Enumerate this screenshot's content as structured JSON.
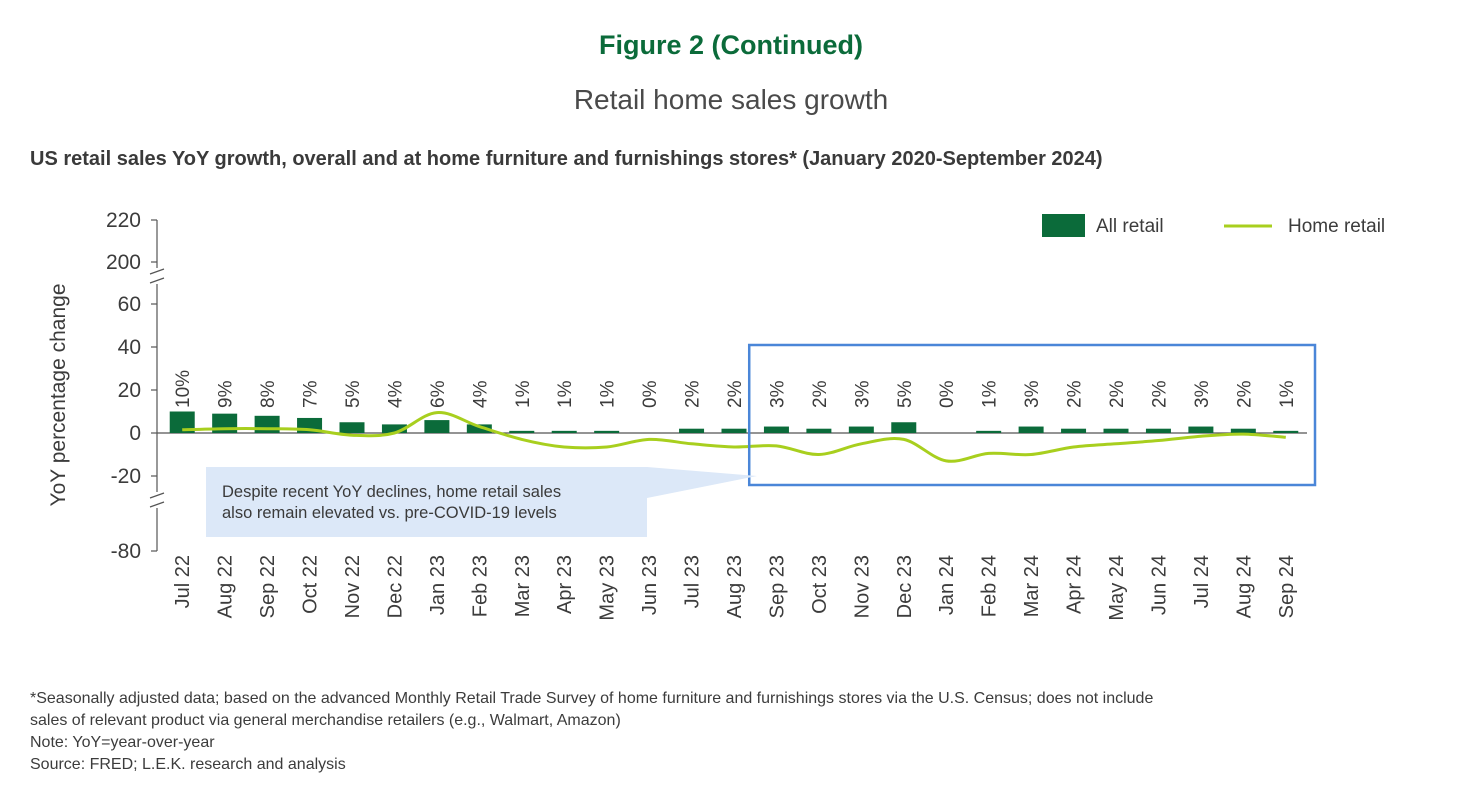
{
  "header": {
    "figure_title": "Figure 2 (Continued)",
    "figure_subtitle": "Retail home sales growth",
    "chart_title": "US retail sales YoY growth, overall and at home furniture and furnishings stores* (January 2020-September 2024)"
  },
  "chart_data": {
    "type": "bar",
    "categories": [
      "Jul 22",
      "Aug 22",
      "Sep 22",
      "Oct 22",
      "Nov 22",
      "Dec 22",
      "Jan 23",
      "Feb 23",
      "Mar 23",
      "Apr 23",
      "May 23",
      "Jun 23",
      "Jul 23",
      "Aug 23",
      "Sep 23",
      "Oct 23",
      "Nov 23",
      "Dec 23",
      "Jan 24",
      "Feb 24",
      "Mar 24",
      "Apr 24",
      "May 24",
      "Jun 24",
      "Jul 24",
      "Aug 24",
      "Sep 24"
    ],
    "ylabel": "YoY percentage change",
    "y_ticks": [
      "220",
      "200",
      "60",
      "40",
      "20",
      "0",
      "-20",
      "-80"
    ],
    "y_axis_breaks": [
      "between 60 and 200",
      "between -20 and -80"
    ],
    "series": [
      {
        "name": "All retail",
        "type": "bar",
        "color": "#0b6b3a",
        "values": [
          10,
          9,
          8,
          7,
          5,
          4,
          6,
          4,
          1,
          1,
          1,
          0,
          2,
          2,
          3,
          2,
          3,
          5,
          0,
          1,
          3,
          2,
          2,
          2,
          3,
          2,
          1
        ],
        "labels": [
          "10%",
          "9%",
          "8%",
          "7%",
          "5%",
          "4%",
          "6%",
          "4%",
          "1%",
          "1%",
          "1%",
          "0%",
          "2%",
          "2%",
          "3%",
          "2%",
          "3%",
          "5%",
          "0%",
          "1%",
          "3%",
          "2%",
          "2%",
          "2%",
          "3%",
          "2%",
          "1%"
        ]
      },
      {
        "name": "Home retail",
        "type": "line",
        "color": "#a8cf1e",
        "values": [
          1.5,
          2,
          2,
          1.5,
          -1,
          0,
          9.5,
          3,
          -3,
          -6.5,
          -6.5,
          -3,
          -5,
          -6.5,
          -6,
          -10,
          -5,
          -3,
          -13,
          -9.5,
          -10,
          -6.5,
          -5,
          -3.5,
          -1.5,
          -0.5,
          -2
        ]
      }
    ],
    "legend_position": "top-right",
    "annotation": {
      "lines": [
        "Despite recent YoY declines, home retail sales",
        "also remain elevated vs. pre-COVID-19 levels"
      ],
      "highlight_range": [
        "Sep 23",
        "Sep 24"
      ]
    },
    "colors": {
      "annotation_fill": "#dce8f8",
      "highlight_border": "#4a86d8",
      "axis": "#555555",
      "text": "#3c3c3c"
    }
  },
  "footnotes": {
    "line1": "*Seasonally adjusted data; based on the advanced Monthly Retail Trade Survey of home furniture and furnishings stores via the U.S. Census; does not include",
    "line2": "sales of relevant product via general merchandise retailers (e.g., Walmart, Amazon)",
    "note": "Note: YoY=year-over-year",
    "source": "Source: FRED; L.E.K. research and analysis"
  }
}
